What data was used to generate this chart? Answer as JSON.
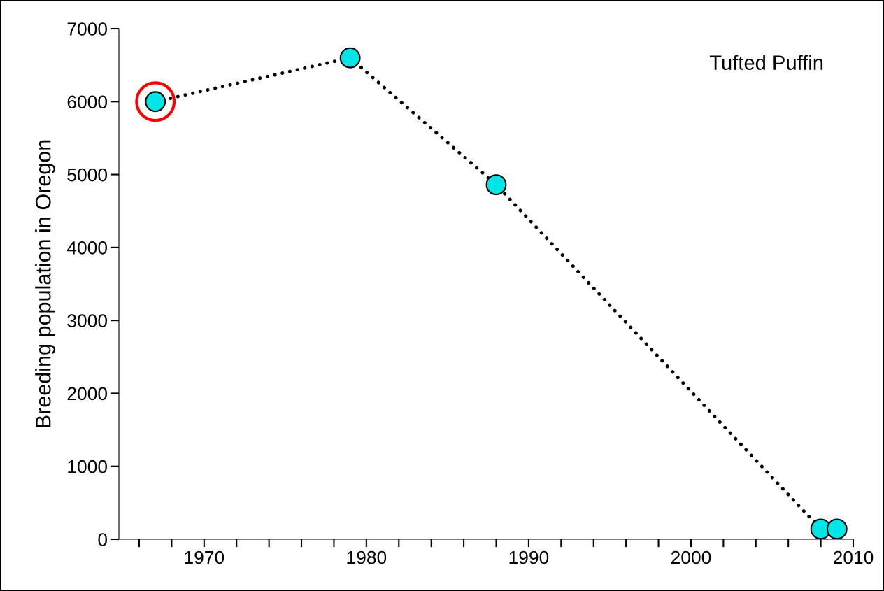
{
  "chart_data": {
    "type": "line",
    "ylabel": "Breeding population in Oregon",
    "annotations": [
      "Tufted Puffin"
    ],
    "x": [
      1967,
      1979,
      1988,
      2008,
      2009
    ],
    "series": [
      {
        "color": "#00e5e5",
        "values": [
          6000,
          6600,
          4860,
          140,
          140
        ],
        "marker": "circle",
        "line_style": "dotted"
      },
      {
        "type": "scatter",
        "color": "#ff0000",
        "x": [
          1967
        ],
        "values": [
          6000
        ],
        "marker": "circle"
      }
    ],
    "xlim": [
      1964.75,
      2010
    ],
    "ylim": [
      0,
      7000
    ],
    "xticks": [
      {
        "value": 1966,
        "label": null
      },
      {
        "value": 1968,
        "label": null
      },
      1970,
      {
        "value": 1972,
        "label": null
      },
      {
        "value": 1974,
        "label": null
      },
      {
        "value": 1976,
        "label": null
      },
      {
        "value": 1978,
        "label": null
      },
      1980,
      {
        "value": 1982,
        "label": null
      },
      {
        "value": 1984,
        "label": null
      },
      {
        "value": 1986,
        "label": null
      },
      {
        "value": 1988,
        "label": null
      },
      1990,
      {
        "value": 1992,
        "label": null
      },
      {
        "value": 1994,
        "label": null
      },
      {
        "value": 1996,
        "label": null
      },
      {
        "value": 1998,
        "label": null
      },
      2000,
      {
        "value": 2002,
        "label": null
      },
      {
        "value": 2004,
        "label": null
      },
      {
        "value": 2006,
        "label": null
      },
      {
        "value": 2008,
        "label": null
      },
      2010
    ],
    "yticks": [
      0,
      1000,
      2000,
      3000,
      4000,
      5000,
      6000,
      7000
    ],
    "grid": false,
    "legend": false
  }
}
